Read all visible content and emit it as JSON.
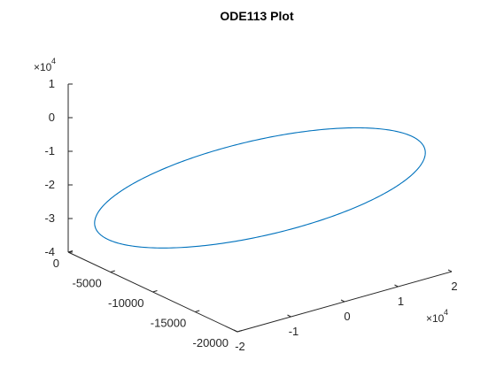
{
  "chart_data": {
    "type": "line",
    "title": "ODE113 Plot",
    "view": "3d",
    "grid": false,
    "legend": "none",
    "axes": {
      "x": {
        "range": [
          -20000,
          0
        ],
        "ticks": [
          0,
          -5000,
          -10000,
          -15000,
          -20000
        ],
        "tick_labels": [
          "0",
          "-5000",
          "-10000",
          "-15000",
          "-20000"
        ]
      },
      "y": {
        "range": [
          -2,
          2
        ],
        "ticks": [
          -2,
          -1,
          0,
          1,
          2
        ],
        "tick_labels": [
          "-2",
          "-1",
          "0",
          "1",
          "2"
        ],
        "multiplier": "×10",
        "multiplier_exponent": "4"
      },
      "z": {
        "range": [
          -4,
          1
        ],
        "ticks": [
          1,
          0,
          -1,
          -2,
          -3,
          -4
        ],
        "tick_labels": [
          "1",
          "0",
          "-1",
          "-2",
          "-3",
          "-4"
        ],
        "multiplier": "×10",
        "multiplier_exponent": "4"
      }
    },
    "series": [
      {
        "color": "#0072BD",
        "center": [
          -10000,
          0,
          -1.8
        ],
        "u_vector": [
          -9600,
          1.55,
          1.65
        ],
        "v_vector": [
          2500,
          0.75,
          -1.95
        ],
        "samples": 360
      }
    ]
  }
}
